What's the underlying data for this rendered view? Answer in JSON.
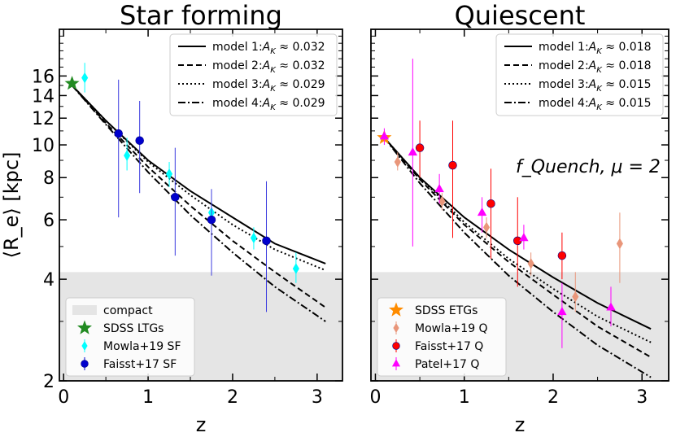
{
  "chart_data": [
    {
      "type": "scatter",
      "title": "Star forming",
      "xlabel": "z",
      "ylabel": "⟨R_e⟩ [kpc]",
      "yscale": "log",
      "xlim": [
        -0.05,
        3.3
      ],
      "ylim": [
        2,
        22
      ],
      "x_ticks": [
        "0",
        "1",
        "2",
        "3"
      ],
      "y_ticks": [
        "2",
        "4",
        "6",
        "8",
        "10",
        "12",
        "14",
        "16"
      ],
      "compact_region": {
        "label": "compact",
        "ymax": 4.2
      },
      "models": [
        {
          "name": "model 1:A_K ≈ 0.032",
          "style": "solid",
          "x": [
            0.1,
            0.5,
            1.0,
            1.5,
            2.0,
            2.5,
            3.1
          ],
          "y": [
            15.0,
            11.8,
            9.0,
            7.3,
            6.1,
            5.1,
            4.45
          ]
        },
        {
          "name": "model 2:A_K ≈ 0.032",
          "style": "dashed",
          "x": [
            0.1,
            0.5,
            1.0,
            1.5,
            2.0,
            2.5,
            3.1
          ],
          "y": [
            15.0,
            11.6,
            8.6,
            6.6,
            5.2,
            4.2,
            3.3
          ]
        },
        {
          "name": "model 3:A_K ≈ 0.029",
          "style": "dotted",
          "x": [
            0.1,
            0.5,
            1.0,
            1.5,
            2.0,
            2.5,
            3.1
          ],
          "y": [
            15.0,
            11.8,
            8.9,
            7.1,
            5.8,
            4.9,
            4.25
          ]
        },
        {
          "name": "model 4:A_K ≈ 0.029",
          "style": "dashdot",
          "x": [
            0.1,
            0.5,
            1.0,
            1.5,
            2.0,
            2.5,
            3.1
          ],
          "y": [
            15.0,
            11.5,
            8.3,
            6.2,
            4.8,
            3.8,
            3.0
          ]
        }
      ],
      "datasets": [
        {
          "name": "SDSS LTGs",
          "marker": "star",
          "color": "#228b22",
          "points": [
            {
              "x": 0.1,
              "y": 15.2,
              "lo": 15.2,
              "hi": 15.2
            }
          ]
        },
        {
          "name": "Mowla+19 SF",
          "marker": "diamond",
          "color": "#00ffff",
          "points": [
            {
              "x": 0.25,
              "y": 15.8,
              "lo": 14.3,
              "hi": 17.5
            },
            {
              "x": 0.75,
              "y": 9.3,
              "lo": 8.4,
              "hi": 10.5
            },
            {
              "x": 1.25,
              "y": 8.2,
              "lo": 7.5,
              "hi": 8.9
            },
            {
              "x": 1.75,
              "y": 6.3,
              "lo": 5.8,
              "hi": 6.9
            },
            {
              "x": 2.25,
              "y": 5.3,
              "lo": 4.9,
              "hi": 5.7
            },
            {
              "x": 2.75,
              "y": 4.3,
              "lo": 3.9,
              "hi": 4.8
            }
          ]
        },
        {
          "name": "Faisst+17 SF",
          "marker": "circle",
          "color": "#0000cd",
          "points": [
            {
              "x": 0.65,
              "y": 10.8,
              "lo": 6.1,
              "hi": 15.6
            },
            {
              "x": 0.9,
              "y": 10.3,
              "lo": 7.2,
              "hi": 13.5
            },
            {
              "x": 1.32,
              "y": 7.0,
              "lo": 4.7,
              "hi": 9.8
            },
            {
              "x": 1.75,
              "y": 6.0,
              "lo": 4.1,
              "hi": 7.4
            },
            {
              "x": 2.4,
              "y": 5.2,
              "lo": 3.2,
              "hi": 7.8
            }
          ]
        }
      ]
    },
    {
      "type": "scatter",
      "title": "Quiescent",
      "xlabel": "z",
      "ylabel": "",
      "yscale": "log",
      "xlim": [
        -0.05,
        3.3
      ],
      "ylim": [
        2,
        22
      ],
      "x_ticks": [
        "0",
        "1",
        "2",
        "3"
      ],
      "y_ticks": [],
      "annotation": "f_Quench, μ = 2",
      "compact_region": {
        "label": "",
        "ymax": 4.2
      },
      "models": [
        {
          "name": "model 1:A_K ≈ 0.018",
          "style": "solid",
          "x": [
            0.1,
            0.5,
            1.0,
            1.5,
            2.0,
            2.5,
            3.1
          ],
          "y": [
            10.5,
            8.0,
            6.1,
            4.9,
            4.05,
            3.4,
            2.85
          ]
        },
        {
          "name": "model 2:A_K ≈ 0.018",
          "style": "dashed",
          "x": [
            0.1,
            0.5,
            1.0,
            1.5,
            2.0,
            2.5,
            3.1
          ],
          "y": [
            10.5,
            7.9,
            5.8,
            4.5,
            3.6,
            2.9,
            2.35
          ]
        },
        {
          "name": "model 3:A_K ≈ 0.015",
          "style": "dotted",
          "x": [
            0.1,
            0.5,
            1.0,
            1.5,
            2.0,
            2.5,
            3.1
          ],
          "y": [
            10.5,
            8.0,
            5.9,
            4.6,
            3.75,
            3.1,
            2.6
          ]
        },
        {
          "name": "model 4:A_K ≈ 0.015",
          "style": "dashdot",
          "x": [
            0.1,
            0.5,
            1.0,
            1.5,
            2.0,
            2.5,
            3.1
          ],
          "y": [
            10.5,
            7.7,
            5.5,
            4.1,
            3.2,
            2.55,
            2.05
          ]
        }
      ],
      "datasets": [
        {
          "name": "SDSS ETGs",
          "marker": "star",
          "color": "#ff8c00",
          "points": [
            {
              "x": 0.1,
              "y": 10.5,
              "lo": 10.5,
              "hi": 10.5
            }
          ]
        },
        {
          "name": "Mowla+19 Q",
          "marker": "diamond",
          "color": "#e9967a",
          "points": [
            {
              "x": 0.25,
              "y": 8.9,
              "lo": 8.4,
              "hi": 9.5
            },
            {
              "x": 0.75,
              "y": 6.8,
              "lo": 6.4,
              "hi": 7.2
            },
            {
              "x": 1.25,
              "y": 5.7,
              "lo": 5.3,
              "hi": 6.1
            },
            {
              "x": 1.75,
              "y": 4.45,
              "lo": 4.1,
              "hi": 4.8
            },
            {
              "x": 2.25,
              "y": 3.55,
              "lo": 3.2,
              "hi": 4.2
            },
            {
              "x": 2.75,
              "y": 5.1,
              "lo": 3.9,
              "hi": 6.3
            }
          ]
        },
        {
          "name": "Faisst+17 Q",
          "marker": "circle",
          "color": "#ff0000",
          "points": [
            {
              "x": 0.5,
              "y": 9.8,
              "lo": 8.0,
              "hi": 11.8
            },
            {
              "x": 0.87,
              "y": 8.7,
              "lo": 5.3,
              "hi": 11.8
            },
            {
              "x": 1.3,
              "y": 6.7,
              "lo": 4.6,
              "hi": 8.5
            },
            {
              "x": 1.6,
              "y": 5.2,
              "lo": 3.8,
              "hi": 7.0
            },
            {
              "x": 2.1,
              "y": 4.7,
              "lo": 4.0,
              "hi": 5.5
            }
          ]
        },
        {
          "name": "Patel+17 Q",
          "marker": "triangle",
          "color": "#ff00ff",
          "points": [
            {
              "x": 0.1,
              "y": 10.6,
              "lo": 10.0,
              "hi": 11.2
            },
            {
              "x": 0.42,
              "y": 9.5,
              "lo": 5.0,
              "hi": 18.0
            },
            {
              "x": 0.72,
              "y": 7.4,
              "lo": 6.7,
              "hi": 8.2
            },
            {
              "x": 1.2,
              "y": 6.3,
              "lo": 5.5,
              "hi": 7.0
            },
            {
              "x": 1.67,
              "y": 5.3,
              "lo": 4.9,
              "hi": 5.8
            },
            {
              "x": 2.1,
              "y": 3.2,
              "lo": 2.5,
              "hi": 3.9
            },
            {
              "x": 2.65,
              "y": 3.3,
              "lo": 2.9,
              "hi": 3.8
            }
          ]
        }
      ]
    }
  ]
}
